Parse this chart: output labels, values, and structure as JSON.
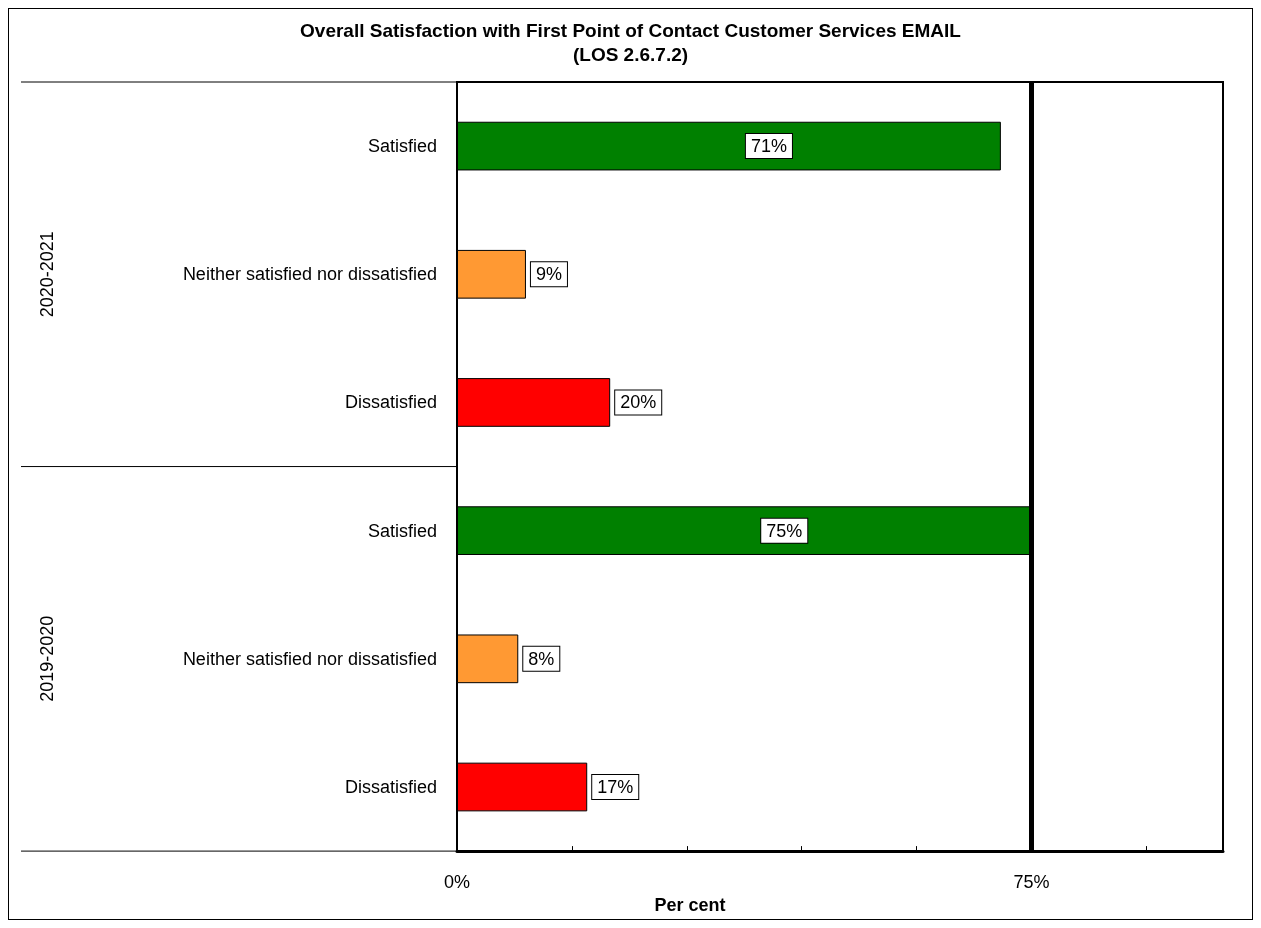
{
  "chart_data": {
    "type": "bar",
    "orientation": "horizontal",
    "title": "Overall Satisfaction with First Point of Contact Customer Services EMAIL\n(LOS 2.6.7.2)",
    "xlabel": "Per cent",
    "categories": [
      "Satisfied",
      "Neither satisfied nor dissatisfied",
      "Dissatisfied",
      "Satisfied",
      "Neither satisfied nor dissatisfied",
      "Dissatisfied"
    ],
    "values": [
      71,
      9,
      20,
      75,
      8,
      17
    ],
    "colors": [
      "#008000",
      "#ff9933",
      "#ff0000",
      "#008000",
      "#ff9933",
      "#ff0000"
    ],
    "value_labels": [
      "71%",
      "9%",
      "20%",
      "75%",
      "8%",
      "17%"
    ],
    "annotations": [
      "2020-2021",
      "2019-2020"
    ],
    "xlim": [
      0,
      100
    ],
    "xticks": [
      {
        "value": 0,
        "label": "0%"
      },
      {
        "value": 15,
        "label": null
      },
      {
        "value": 30,
        "label": null
      },
      {
        "value": 45,
        "label": null
      },
      {
        "value": 60,
        "label": null
      },
      {
        "value": 75,
        "label": "75%"
      },
      {
        "value": 90,
        "label": null
      }
    ],
    "ref_lines": [
      {
        "axis": "x",
        "value": 75,
        "color": "#000000"
      }
    ],
    "grid": false
  }
}
